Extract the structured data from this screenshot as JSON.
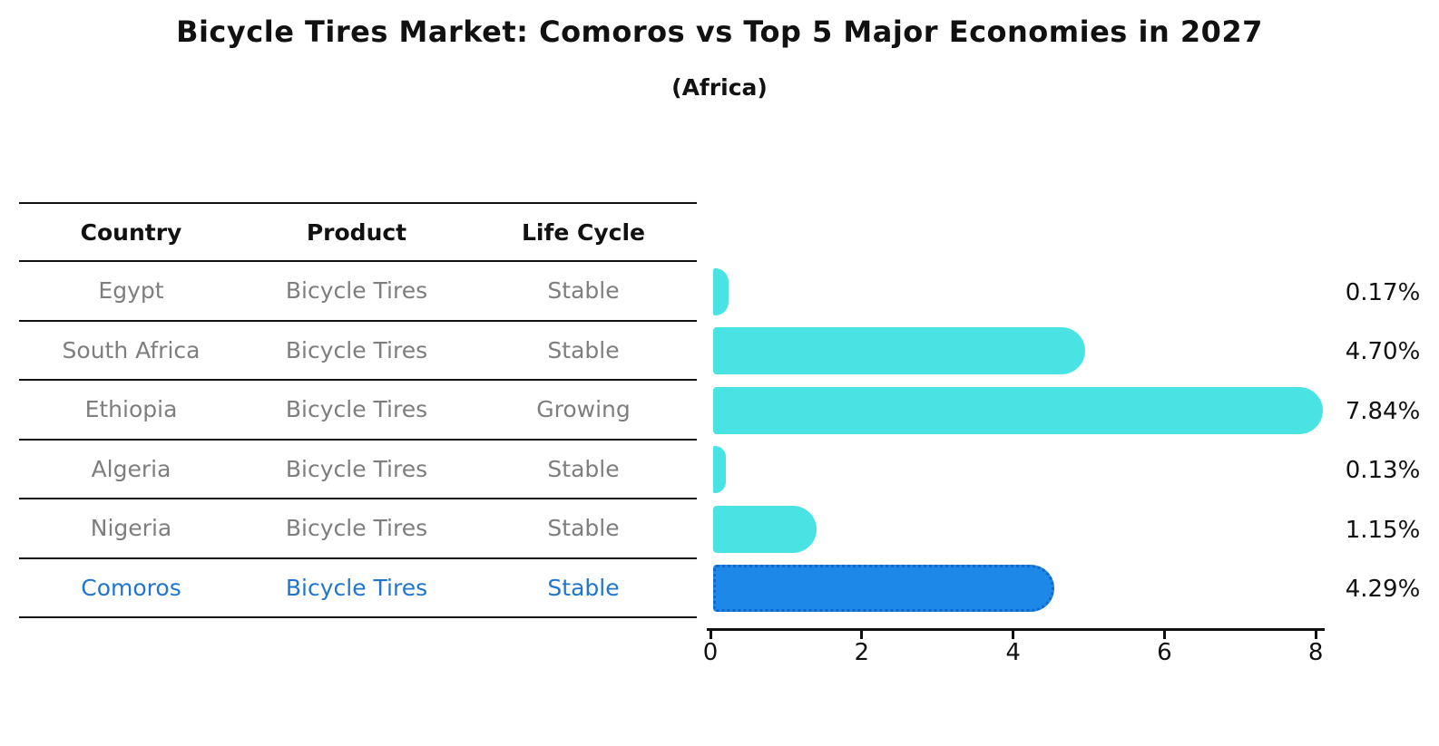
{
  "title": "Bicycle Tires Market: Comoros vs Top 5 Major Economies in 2027",
  "subtitle": "(Africa)",
  "table": {
    "headers": [
      "Country",
      "Product",
      "Life Cycle"
    ],
    "rows": [
      {
        "country": "Egypt",
        "product": "Bicycle Tires",
        "life_cycle": "Stable",
        "highlight": false
      },
      {
        "country": "South Africa",
        "product": "Bicycle Tires",
        "life_cycle": "Stable",
        "highlight": false
      },
      {
        "country": "Ethiopia",
        "product": "Bicycle Tires",
        "life_cycle": "Growing",
        "highlight": false
      },
      {
        "country": "Algeria",
        "product": "Bicycle Tires",
        "life_cycle": "Stable",
        "highlight": false
      },
      {
        "country": "Nigeria",
        "product": "Bicycle Tires",
        "life_cycle": "Stable",
        "highlight": false
      },
      {
        "country": "Comoros",
        "product": "Bicycle Tires",
        "life_cycle": "Stable",
        "highlight": true
      }
    ]
  },
  "chart_data": {
    "type": "bar",
    "orientation": "horizontal",
    "title": "Bicycle Tires Market: Comoros vs Top 5 Major Economies in 2027",
    "subtitle": "(Africa)",
    "categories": [
      "Egypt",
      "South Africa",
      "Ethiopia",
      "Algeria",
      "Nigeria",
      "Comoros"
    ],
    "values": [
      0.17,
      4.7,
      7.84,
      0.13,
      1.15,
      4.29
    ],
    "value_labels": [
      "0.17%",
      "4.70%",
      "7.84%",
      "0.13%",
      "1.15%",
      "4.29%"
    ],
    "x_ticks": [
      "0",
      "2",
      "4",
      "6",
      "8"
    ],
    "xlim": [
      0,
      8.2
    ],
    "grid": false,
    "legend": false,
    "bar_color": "#4AE3E3",
    "highlight_bar_color": "#1E88E8",
    "highlight_index": 5,
    "highlight_text_color": "#2176cc",
    "text_color": "#7e7e7e",
    "axis_color": "#111111"
  }
}
